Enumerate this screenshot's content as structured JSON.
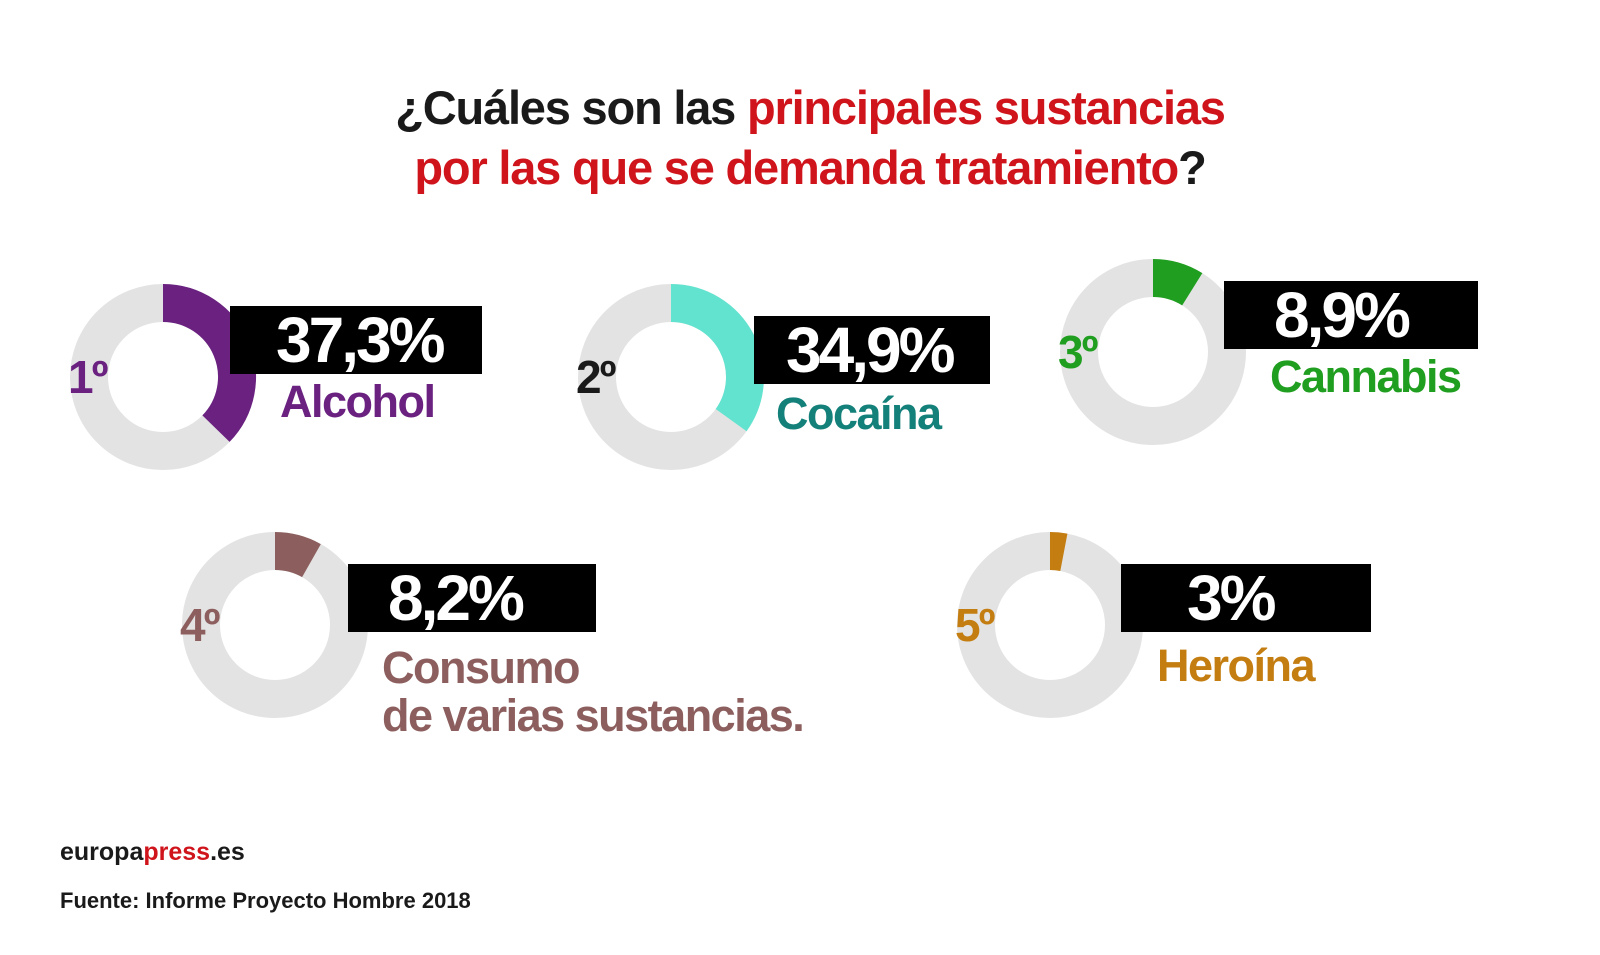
{
  "title": {
    "part1": "¿Cuáles son las ",
    "part2": "principales sustancias",
    "part3": "por las que se demanda tratamiento",
    "part4": "?"
  },
  "chart_data": {
    "type": "pie",
    "title": "¿Cuáles son las principales sustancias por las que se demanda tratamiento?",
    "unit": "%",
    "categories": [
      "Alcohol",
      "Cocaína",
      "Cannabis",
      "Consumo de varias sustancias.",
      "Heroína"
    ],
    "values": [
      37.3,
      34.9,
      8.9,
      8.2,
      3
    ],
    "items": [
      {
        "rank": "1º",
        "value": 37.3,
        "value_label": "37,3%",
        "label_lines": [
          "Alcohol"
        ],
        "color": "#6a2180",
        "rank_color": "#6a2180"
      },
      {
        "rank": "2º",
        "value": 34.9,
        "value_label": "34,9%",
        "label_lines": [
          "Cocaína"
        ],
        "color": "#62e3cf",
        "rank_color": "#1a1a1a",
        "label_color": "#14807a"
      },
      {
        "rank": "3º",
        "value": 8.9,
        "value_label": "8,9%",
        "label_lines": [
          "Cannabis"
        ],
        "color": "#1f9e1f",
        "rank_color": "#1f9e1f"
      },
      {
        "rank": "4º",
        "value": 8.2,
        "value_label": "8,2%",
        "label_lines": [
          "Consumo",
          "de varias sustancias."
        ],
        "color": "#8c5f5e",
        "rank_color": "#8c5f5e"
      },
      {
        "rank": "5º",
        "value": 3,
        "value_label": "3%",
        "label_lines": [
          "Heroína"
        ],
        "color": "#c47d10",
        "rank_color": "#c47d10"
      }
    ],
    "track_color": "#e3e3e3"
  },
  "footer": {
    "brand_part1": "europa",
    "brand_part2": "press",
    "brand_part3": ".es",
    "source": "Fuente: Informe Proyecto Hombre 2018"
  }
}
